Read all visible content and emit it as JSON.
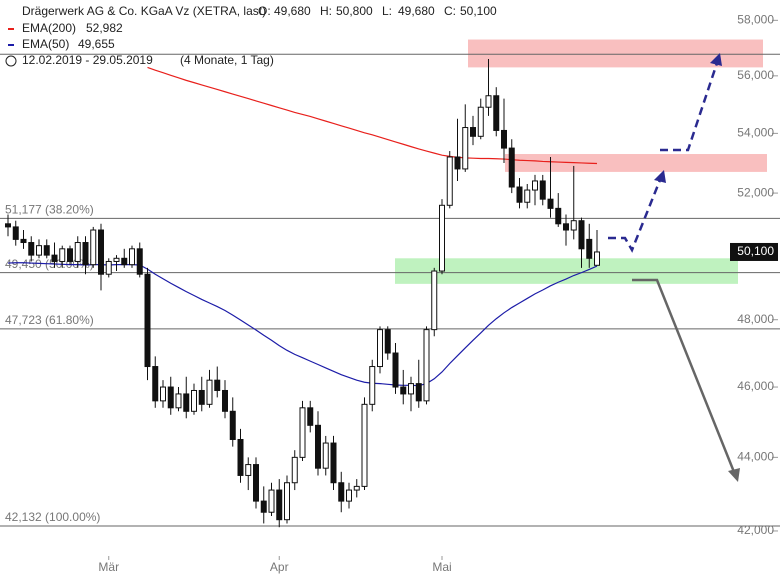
{
  "chart_data": {
    "type": "candlestick",
    "title": "Drägerwerk AG & Co. KGaA Vz (XETRA, last)",
    "ohlc_header": [
      {
        "name": "O:",
        "value": 49680,
        "label": "49,680"
      },
      {
        "name": "H:",
        "value": 50800,
        "label": "50,800"
      },
      {
        "name": "L:",
        "value": 49680,
        "label": "49,680"
      },
      {
        "name": "C:",
        "value": 50100,
        "label": "50,100"
      }
    ],
    "date_range": "12.02.2019 - 29.05.2019",
    "period": "(4 Monate, 1 Tag)",
    "last_price": {
      "value": 50100,
      "label": "50,100"
    },
    "log_scale": true,
    "ylim": [
      41550,
      58750
    ],
    "yticks": [
      {
        "value": 42000,
        "label": "42,000"
      },
      {
        "value": 44000,
        "label": "44,000"
      },
      {
        "value": 46000,
        "label": "46,000"
      },
      {
        "value": 48000,
        "label": "48,000"
      },
      {
        "value": 50000,
        "label": "50,000"
      },
      {
        "value": 52000,
        "label": "52,000"
      },
      {
        "value": 54000,
        "label": "54,000"
      },
      {
        "value": 56000,
        "label": "56,000"
      },
      {
        "value": 58000,
        "label": "58,000"
      }
    ],
    "categories": [
      null,
      null,
      null,
      null,
      null,
      null,
      null,
      null,
      null,
      null,
      null,
      null,
      null,
      "Mär",
      null,
      null,
      null,
      null,
      null,
      null,
      null,
      null,
      null,
      null,
      null,
      null,
      null,
      null,
      null,
      null,
      null,
      null,
      null,
      null,
      null,
      "Apr",
      null,
      null,
      null,
      null,
      null,
      null,
      null,
      null,
      null,
      null,
      null,
      null,
      null,
      null,
      null,
      null,
      null,
      null,
      null,
      null,
      "Mai",
      null,
      null,
      null,
      null,
      null,
      null,
      null,
      null,
      null,
      null,
      null,
      null,
      null,
      null,
      null,
      null,
      null,
      null,
      null,
      null
    ],
    "open": [
      51000,
      50900,
      50500,
      50400,
      50000,
      50300,
      50000,
      49800,
      50200,
      49800,
      50400,
      49700,
      50800,
      49400,
      49800,
      49900,
      49700,
      50200,
      49400,
      46600,
      45600,
      46000,
      45400,
      45800,
      45300,
      45900,
      45500,
      46200,
      45900,
      45300,
      44500,
      43500,
      43800,
      42800,
      42500,
      43100,
      42300,
      43300,
      44000,
      45400,
      44900,
      43700,
      44400,
      43300,
      42800,
      43100,
      43200,
      45500,
      46600,
      47700,
      47000,
      46000,
      45800,
      46100,
      45600,
      47700,
      49500,
      51600,
      53200,
      52800,
      54200,
      53900,
      54900,
      55300,
      54100,
      53500,
      52200,
      51700,
      52100,
      52400,
      51800,
      51500,
      51000,
      50800,
      51100,
      50500,
      49680
    ],
    "high": [
      51300,
      51100,
      50800,
      50600,
      50500,
      50500,
      50400,
      50300,
      50300,
      50600,
      50600,
      50900,
      51000,
      49900,
      50000,
      50200,
      50300,
      50400,
      49600,
      46900,
      46200,
      46300,
      46000,
      46300,
      46100,
      46300,
      46500,
      46600,
      46200,
      45700,
      44800,
      44000,
      44000,
      43200,
      43300,
      43400,
      43500,
      44200,
      45600,
      45600,
      45300,
      44600,
      44600,
      43600,
      43300,
      43400,
      45700,
      46800,
      47800,
      47800,
      47300,
      46500,
      46300,
      46800,
      47800,
      49600,
      51800,
      53400,
      54500,
      55000,
      54600,
      55200,
      56600,
      55600,
      55200,
      53800,
      52500,
      52300,
      52600,
      52600,
      53200,
      52000,
      51300,
      52900,
      51200,
      51000,
      50800
    ],
    "low": [
      50600,
      50300,
      50200,
      49800,
      49900,
      49900,
      49600,
      49600,
      49700,
      49600,
      49400,
      49600,
      48900,
      49300,
      49500,
      49600,
      49600,
      49300,
      46200,
      45400,
      45400,
      45200,
      45300,
      45100,
      45200,
      45300,
      45400,
      45700,
      45100,
      44300,
      43300,
      43100,
      42600,
      42200,
      42400,
      42100,
      42200,
      43100,
      43900,
      44700,
      43500,
      43500,
      43100,
      42500,
      42600,
      42900,
      43100,
      45300,
      46400,
      46800,
      45800,
      45500,
      45300,
      45400,
      45500,
      47500,
      49400,
      51500,
      52400,
      52700,
      53600,
      53800,
      54600,
      53900,
      53000,
      52000,
      51500,
      51500,
      51600,
      51600,
      51200,
      50900,
      50300,
      50500,
      49600,
      49600,
      49680
    ],
    "close": [
      50900,
      50500,
      50400,
      50000,
      50300,
      50000,
      49800,
      50200,
      49800,
      50400,
      49700,
      50800,
      49400,
      49800,
      49900,
      49700,
      50200,
      49400,
      46600,
      45600,
      46000,
      45400,
      45800,
      45300,
      45900,
      45500,
      46200,
      45900,
      45300,
      44500,
      43500,
      43800,
      42800,
      42500,
      43100,
      42300,
      43300,
      44000,
      45400,
      44900,
      43700,
      44400,
      43300,
      42800,
      43100,
      43200,
      45500,
      46600,
      47700,
      47000,
      46000,
      45800,
      46100,
      45600,
      47700,
      49500,
      51600,
      53200,
      52800,
      54200,
      53900,
      54900,
      55300,
      54100,
      53500,
      52200,
      51700,
      52100,
      52400,
      51800,
      51500,
      51000,
      50800,
      51100,
      50200,
      49900,
      50100
    ],
    "series": [
      {
        "name": "EMA(200)",
        "color": "#e8201c",
        "last": {
          "value": 52982,
          "label": "52,982"
        },
        "values": [
          null,
          null,
          null,
          null,
          null,
          null,
          null,
          null,
          null,
          null,
          null,
          null,
          null,
          null,
          null,
          null,
          null,
          null,
          56300,
          56200,
          56110,
          56020,
          55930,
          55840,
          55760,
          55680,
          55600,
          55520,
          55440,
          55360,
          55280,
          55200,
          55120,
          55040,
          54960,
          54880,
          54800,
          54720,
          54650,
          54580,
          54500,
          54420,
          54340,
          54260,
          54180,
          54100,
          54020,
          53950,
          53870,
          53790,
          53710,
          53630,
          53550,
          53470,
          53400,
          53330,
          53260,
          53220,
          53190,
          53170,
          53160,
          53150,
          53150,
          53140,
          53130,
          53110,
          53090,
          53080,
          53070,
          53050,
          53040,
          53030,
          53020,
          53010,
          53000,
          52990,
          52982
        ]
      },
      {
        "name": "EMA(50)",
        "color": "#1c1ca8",
        "last": {
          "value": 49655,
          "label": "49,655"
        },
        "values": [
          49750,
          49760,
          49760,
          49750,
          49740,
          49730,
          49720,
          49710,
          49700,
          49700,
          49690,
          49700,
          49700,
          49690,
          49700,
          49700,
          49700,
          49690,
          49560,
          49400,
          49260,
          49120,
          48990,
          48860,
          48740,
          48620,
          48510,
          48400,
          48280,
          48140,
          47990,
          47840,
          47690,
          47530,
          47380,
          47220,
          47080,
          46960,
          46860,
          46760,
          46660,
          46560,
          46460,
          46360,
          46280,
          46200,
          46140,
          46110,
          46100,
          46080,
          46060,
          46050,
          46050,
          46040,
          46100,
          46240,
          46440,
          46690,
          46920,
          47150,
          47380,
          47600,
          47830,
          48030,
          48210,
          48370,
          48510,
          48650,
          48790,
          48910,
          49040,
          49150,
          49250,
          49360,
          49450,
          49550,
          49655
        ]
      }
    ],
    "fib_levels": [
      {
        "value": 56768,
        "label": null
      },
      {
        "value": 51177,
        "label": "51,177 (38.20%)"
      },
      {
        "value": 49450,
        "label": "49,450 (50.00%)"
      },
      {
        "value": 47723,
        "label": "47,723 (61.80%)"
      },
      {
        "value": 42132,
        "label": "42,132 (100.00%)"
      }
    ],
    "zones": [
      {
        "color": "#f8b4b4",
        "range": [
          56300,
          57300
        ]
      },
      {
        "color": "#f8b4b4",
        "range": [
          52700,
          53300
        ]
      },
      {
        "color": "#b4f0b4",
        "range": [
          49100,
          49900
        ]
      }
    ]
  }
}
